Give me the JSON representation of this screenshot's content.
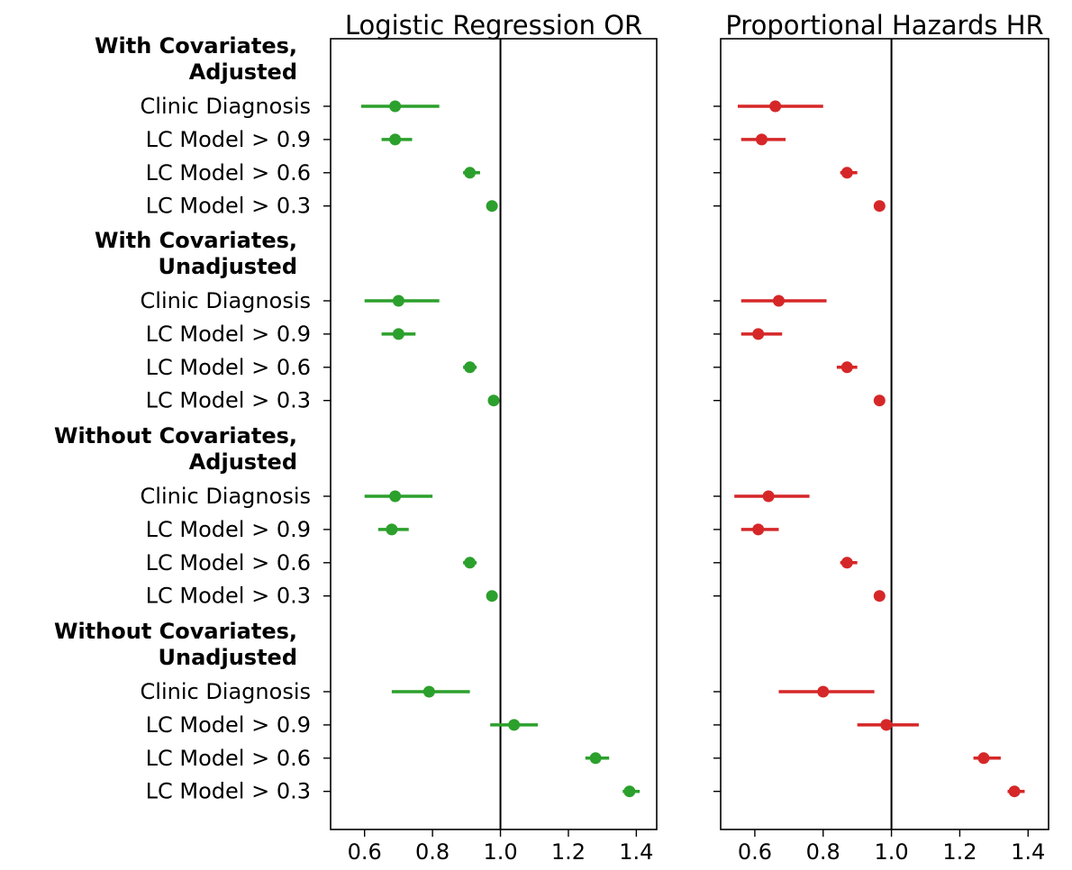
{
  "chart_data": {
    "type": "forest",
    "groups": [
      {
        "label_lines": [
          "With Covariates,",
          "Adjusted"
        ]
      },
      {
        "label_lines": [
          "With Covariates,",
          "Unadjusted"
        ]
      },
      {
        "label_lines": [
          "Without Covariates,",
          "Adjusted"
        ]
      },
      {
        "label_lines": [
          "Without Covariates,",
          "Unadjusted"
        ]
      }
    ],
    "row_labels": [
      "Clinic Diagnosis",
      "LC Model > 0.9",
      "LC Model > 0.6",
      "LC Model > 0.3"
    ],
    "xlim": [
      0.5,
      1.46
    ],
    "x_ticks": [
      0.6,
      0.8,
      1.0,
      1.2,
      1.4
    ],
    "x_tick_labels": [
      "0.6",
      "0.8",
      "1.0",
      "1.2",
      "1.4"
    ],
    "reference_line": 1.0,
    "grid": false,
    "panels": [
      {
        "title": "Logistic Regression OR",
        "color": "#2ca02c",
        "series": [
          {
            "group": 0,
            "points": [
              {
                "est": 0.69,
                "lo": 0.59,
                "hi": 0.82
              },
              {
                "est": 0.69,
                "lo": 0.65,
                "hi": 0.74
              },
              {
                "est": 0.91,
                "lo": 0.89,
                "hi": 0.94
              },
              {
                "est": 0.975,
                "lo": 0.96,
                "hi": 0.99
              }
            ]
          },
          {
            "group": 1,
            "points": [
              {
                "est": 0.7,
                "lo": 0.6,
                "hi": 0.82
              },
              {
                "est": 0.7,
                "lo": 0.65,
                "hi": 0.75
              },
              {
                "est": 0.91,
                "lo": 0.89,
                "hi": 0.93
              },
              {
                "est": 0.98,
                "lo": 0.97,
                "hi": 0.99
              }
            ]
          },
          {
            "group": 2,
            "points": [
              {
                "est": 0.69,
                "lo": 0.6,
                "hi": 0.8
              },
              {
                "est": 0.68,
                "lo": 0.64,
                "hi": 0.73
              },
              {
                "est": 0.91,
                "lo": 0.89,
                "hi": 0.93
              },
              {
                "est": 0.975,
                "lo": 0.96,
                "hi": 0.98
              }
            ]
          },
          {
            "group": 3,
            "points": [
              {
                "est": 0.79,
                "lo": 0.68,
                "hi": 0.91
              },
              {
                "est": 1.04,
                "lo": 0.97,
                "hi": 1.11
              },
              {
                "est": 1.28,
                "lo": 1.25,
                "hi": 1.32
              },
              {
                "est": 1.38,
                "lo": 1.36,
                "hi": 1.41
              }
            ]
          }
        ]
      },
      {
        "title": "Proportional Hazards HR",
        "color": "#d62728",
        "series": [
          {
            "group": 0,
            "points": [
              {
                "est": 0.66,
                "lo": 0.55,
                "hi": 0.8
              },
              {
                "est": 0.62,
                "lo": 0.56,
                "hi": 0.69
              },
              {
                "est": 0.87,
                "lo": 0.85,
                "hi": 0.9
              },
              {
                "est": 0.965,
                "lo": 0.95,
                "hi": 0.98
              }
            ]
          },
          {
            "group": 1,
            "points": [
              {
                "est": 0.67,
                "lo": 0.56,
                "hi": 0.81
              },
              {
                "est": 0.61,
                "lo": 0.56,
                "hi": 0.68
              },
              {
                "est": 0.87,
                "lo": 0.84,
                "hi": 0.9
              },
              {
                "est": 0.965,
                "lo": 0.95,
                "hi": 0.98
              }
            ]
          },
          {
            "group": 2,
            "points": [
              {
                "est": 0.64,
                "lo": 0.54,
                "hi": 0.76
              },
              {
                "est": 0.61,
                "lo": 0.56,
                "hi": 0.67
              },
              {
                "est": 0.87,
                "lo": 0.85,
                "hi": 0.9
              },
              {
                "est": 0.965,
                "lo": 0.95,
                "hi": 0.98
              }
            ]
          },
          {
            "group": 3,
            "points": [
              {
                "est": 0.8,
                "lo": 0.67,
                "hi": 0.95
              },
              {
                "est": 0.985,
                "lo": 0.9,
                "hi": 1.08
              },
              {
                "est": 1.27,
                "lo": 1.24,
                "hi": 1.32
              },
              {
                "est": 1.36,
                "lo": 1.34,
                "hi": 1.39
              }
            ]
          }
        ]
      }
    ]
  }
}
